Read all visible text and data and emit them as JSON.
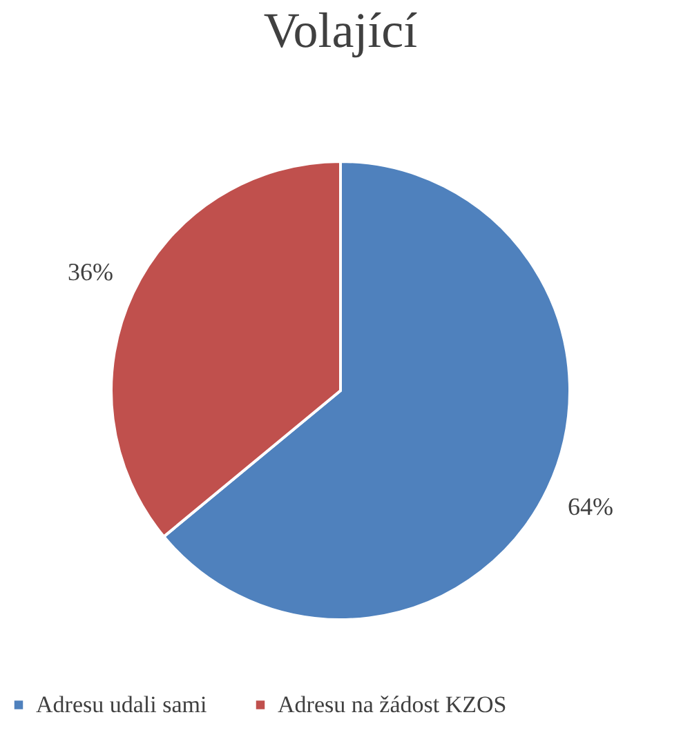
{
  "chart_data": {
    "type": "pie",
    "title": "Volající",
    "categories": [
      "Adresu udali sami",
      "Adresu na žádost KZOS"
    ],
    "values": [
      64,
      36
    ],
    "colors": [
      "#4f81bd",
      "#c0504d"
    ],
    "value_labels": [
      "64%",
      "36%"
    ],
    "legend": "bottom"
  }
}
